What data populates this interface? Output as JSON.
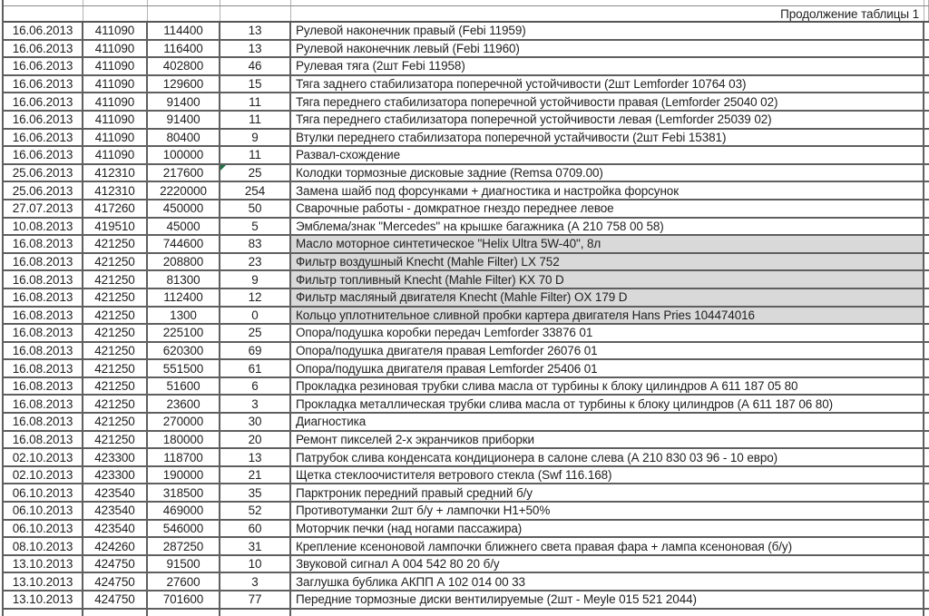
{
  "colors": {
    "border_dark": "#5f5f5f",
    "border_light": "#b3b3b3",
    "row_shade": "#d9d9d9",
    "flag_green": "#1e7145",
    "text": "#1f1f1f"
  },
  "table": {
    "continuation_label": "Продолжение таблицы 1",
    "rows": [
      {
        "date": "16.06.2013",
        "num": "411090",
        "amount": "114400",
        "pct": "13",
        "desc": "Рулевой наконечник правый (Febi 11959)",
        "shaded": false,
        "flag": false
      },
      {
        "date": "16.06.2013",
        "num": "411090",
        "amount": "116400",
        "pct": "13",
        "desc": "Рулевой наконечник левый (Febi 11960)",
        "shaded": false,
        "flag": false
      },
      {
        "date": "16.06.2013",
        "num": "411090",
        "amount": "402800",
        "pct": "46",
        "desc": "Рулевая тяга (2шт Febi 11958)",
        "shaded": false,
        "flag": false
      },
      {
        "date": "16.06.2013",
        "num": "411090",
        "amount": "129600",
        "pct": "15",
        "desc": "Тяга заднего стабилизатора поперечной устойчивости (2шт Lemforder 10764 03)",
        "shaded": false,
        "flag": false
      },
      {
        "date": "16.06.2013",
        "num": "411090",
        "amount": "91400",
        "pct": "11",
        "desc": "Тяга переднего стабилизатора поперечной устойчивости правая (Lemforder 25040 02)",
        "shaded": false,
        "flag": false
      },
      {
        "date": "16.06.2013",
        "num": "411090",
        "amount": "91400",
        "pct": "11",
        "desc": "Тяга переднего стабилизатора поперечной устойчивости левая (Lemforder 25039 02)",
        "shaded": false,
        "flag": false
      },
      {
        "date": "16.06.2013",
        "num": "411090",
        "amount": "80400",
        "pct": "9",
        "desc": "Втулки переднего стабилизатора поперечной устайчивости (2шт Febi 15381)",
        "shaded": false,
        "flag": false
      },
      {
        "date": "16.06.2013",
        "num": "411090",
        "amount": "100000",
        "pct": "11",
        "desc": "Развал-схождение",
        "shaded": false,
        "flag": false
      },
      {
        "date": "25.06.2013",
        "num": "412310",
        "amount": "217600",
        "pct": "25",
        "desc": "Колодки тормозные дисковые задние (Remsa 0709.00)",
        "shaded": false,
        "flag": true
      },
      {
        "date": "25.06.2013",
        "num": "412310",
        "amount": "2220000",
        "pct": "254",
        "desc": "Замена шайб под форсунками + диагностика и настройка форсунок",
        "shaded": false,
        "flag": false
      },
      {
        "date": "27.07.2013",
        "num": "417260",
        "amount": "450000",
        "pct": "50",
        "desc": "Сварочные работы - домкратное гнездо переднее левое",
        "shaded": false,
        "flag": false
      },
      {
        "date": "10.08.2013",
        "num": "419510",
        "amount": "45000",
        "pct": "5",
        "desc": "Эмблема/знак \"Mercedes\" на крышке багажника (А 210 758 00 58)",
        "shaded": false,
        "flag": false
      },
      {
        "date": "16.08.2013",
        "num": "421250",
        "amount": "744600",
        "pct": "83",
        "desc": "Масло моторное синтетическое \"Helix Ultra 5W-40\", 8л",
        "shaded": true,
        "flag": false
      },
      {
        "date": "16.08.2013",
        "num": "421250",
        "amount": "208800",
        "pct": "23",
        "desc": "Фильтр воздушный Knecht (Mahle Filter) LX 752",
        "shaded": true,
        "flag": false
      },
      {
        "date": "16.08.2013",
        "num": "421250",
        "amount": "81300",
        "pct": "9",
        "desc": "Фильтр топливный Knecht (Mahle Filter) KX 70 D",
        "shaded": true,
        "flag": false
      },
      {
        "date": "16.08.2013",
        "num": "421250",
        "amount": "112400",
        "pct": "12",
        "desc": "Фильтр масляный двигателя Knecht (Mahle Filter) OX 179 D",
        "shaded": true,
        "flag": false
      },
      {
        "date": "16.08.2013",
        "num": "421250",
        "amount": "1300",
        "pct": "0",
        "desc": "Кольцо уплотнительное сливной пробки картера двигателя Hans Pries 104474016",
        "shaded": true,
        "flag": false
      },
      {
        "date": "16.08.2013",
        "num": "421250",
        "amount": "225100",
        "pct": "25",
        "desc": "Опора/подушка коробки передач Lemforder 33876 01",
        "shaded": false,
        "flag": false
      },
      {
        "date": "16.08.2013",
        "num": "421250",
        "amount": "620300",
        "pct": "69",
        "desc": "Опора/подушка двигателя правая Lemforder 26076 01",
        "shaded": false,
        "flag": false
      },
      {
        "date": "16.08.2013",
        "num": "421250",
        "amount": "551500",
        "pct": "61",
        "desc": "Опора/подушка двигателя правая Lemforder 25406 01",
        "shaded": false,
        "flag": false
      },
      {
        "date": "16.08.2013",
        "num": "421250",
        "amount": "51600",
        "pct": "6",
        "desc": "Прокладка резиновая трубки слива масла от турбины к блоку цилиндров А 611 187 05 80",
        "shaded": false,
        "flag": false
      },
      {
        "date": "16.08.2013",
        "num": "421250",
        "amount": "23600",
        "pct": "3",
        "desc": "Прокладка металлическая трубки слива масла от турбины к блоку цилиндров (А 611 187 06 80)",
        "shaded": false,
        "flag": false
      },
      {
        "date": "16.08.2013",
        "num": "421250",
        "amount": "270000",
        "pct": "30",
        "desc": "Диагностика",
        "shaded": false,
        "flag": false
      },
      {
        "date": "16.08.2013",
        "num": "421250",
        "amount": "180000",
        "pct": "20",
        "desc": "Ремонт пикселей 2-х экранчиков приборки",
        "shaded": false,
        "flag": false
      },
      {
        "date": "02.10.2013",
        "num": "423300",
        "amount": "118700",
        "pct": "13",
        "desc": "Патрубок слива конденсата кондиционера в салоне слева (А 210 830 03 96 - 10 евро)",
        "shaded": false,
        "flag": false
      },
      {
        "date": "02.10.2013",
        "num": "423300",
        "amount": "190000",
        "pct": "21",
        "desc": "Щетка стеклоочистителя ветрового стекла (Swf 116.168)",
        "shaded": false,
        "flag": false
      },
      {
        "date": "06.10.2013",
        "num": "423540",
        "amount": "318500",
        "pct": "35",
        "desc": "Парктроник передний правый средний б/у",
        "shaded": false,
        "flag": false
      },
      {
        "date": "06.10.2013",
        "num": "423540",
        "amount": "469000",
        "pct": "52",
        "desc": "Противотуманки 2шт б/у + лампочки Н1+50%",
        "shaded": false,
        "flag": false
      },
      {
        "date": "06.10.2013",
        "num": "423540",
        "amount": "546000",
        "pct": "60",
        "desc": "Моторчик печки (над ногами пассажира)",
        "shaded": false,
        "flag": false
      },
      {
        "date": "08.10.2013",
        "num": "424260",
        "amount": "287250",
        "pct": "31",
        "desc": "Крепление ксеноновой лампочки ближнего света правая фара + лампа ксеноновая (б/у)",
        "shaded": false,
        "flag": false
      },
      {
        "date": "13.10.2013",
        "num": "424750",
        "amount": "91500",
        "pct": "10",
        "desc": "Звуковой сигнал А 004 542 80 20 б/у",
        "shaded": false,
        "flag": false
      },
      {
        "date": "13.10.2013",
        "num": "424750",
        "amount": "27600",
        "pct": "3",
        "desc": "Заглушка бублика АКПП А 102 014 00 33",
        "shaded": false,
        "flag": false
      },
      {
        "date": "13.10.2013",
        "num": "424750",
        "amount": "701600",
        "pct": "77",
        "desc": "Передние тормозные диски вентилируемые (2шт - Meyle 015 521 2044)",
        "shaded": false,
        "flag": false
      }
    ]
  }
}
